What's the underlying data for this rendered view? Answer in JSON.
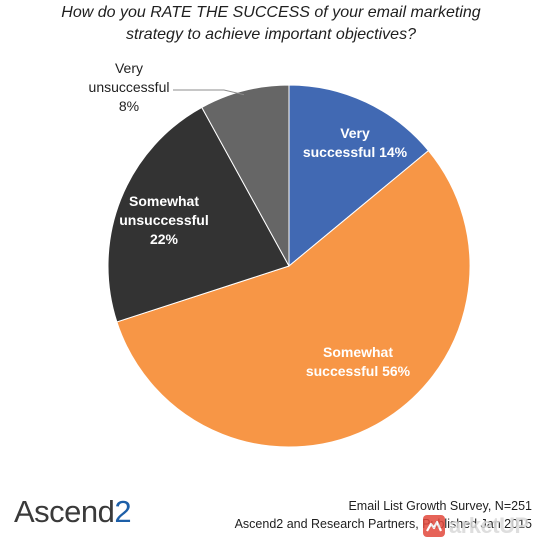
{
  "chart_data": {
    "type": "pie",
    "title_lines": [
      "How do you RATE THE SUCCESS of your email marketing",
      "strategy to achieve important objectives?"
    ],
    "slices": [
      {
        "lines": [
          "Very",
          "successful 14%"
        ],
        "value": 14,
        "color": "#4169b3"
      },
      {
        "lines": [
          "Somewhat",
          "successful 56%"
        ],
        "value": 56,
        "color": "#f79646"
      },
      {
        "lines": [
          "Somewhat",
          "unsuccessful",
          "22%"
        ],
        "value": 22,
        "color": "#333333"
      },
      {
        "lines": [
          "Very",
          "unsuccessful",
          "8%"
        ],
        "value": 8,
        "color": "#666666"
      }
    ]
  },
  "logo": {
    "text": "Ascend",
    "digit": "2"
  },
  "source": {
    "line1": "Email List Growth Survey, N=251",
    "line2": "Ascend2 and Research Partners, Published Jan 2015"
  },
  "watermark": {
    "text": "arketUP"
  }
}
